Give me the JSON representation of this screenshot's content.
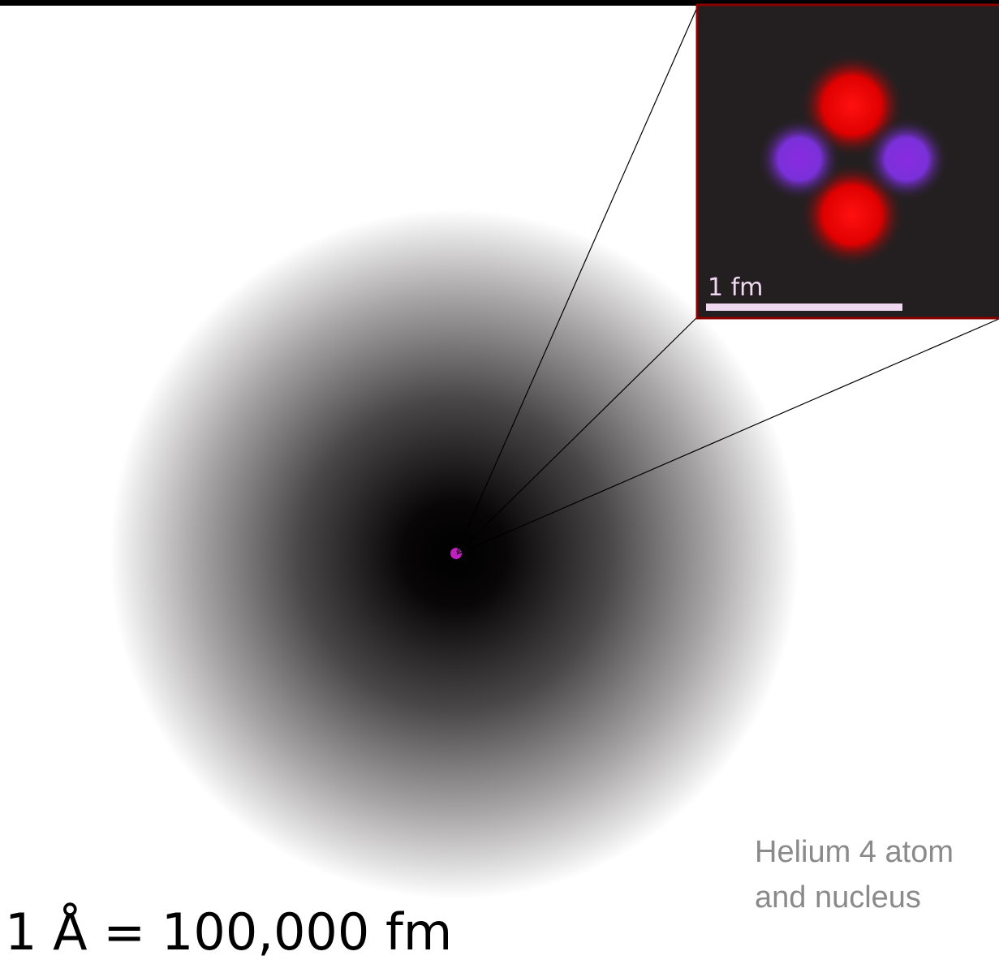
{
  "inset": {
    "scale_label": "1 fm"
  },
  "caption": {
    "lines": [
      "Helium 4 atom",
      "and nucleus"
    ]
  },
  "scale_text": "1 Å = 100,000 fm"
}
